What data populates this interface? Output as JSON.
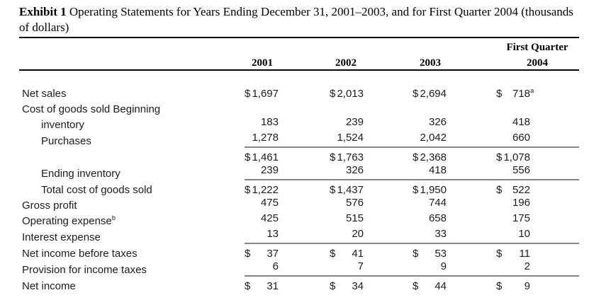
{
  "title": {
    "exhibit_label": "Exhibit 1",
    "line1": " Operating Statements for Years Ending December 31, 2001–2003, and for First Quarter 2004 (thousands",
    "line2": "of dollars)"
  },
  "table": {
    "col_group_header": "First Quarter",
    "year_headers": [
      "2001",
      "2002",
      "2003",
      "2004"
    ],
    "rows": [
      {
        "label": "Net sales",
        "indent": 0,
        "rule": false,
        "cells": [
          {
            "cur": "$",
            "val": "1,697"
          },
          {
            "cur": "$",
            "val": "2,013"
          },
          {
            "cur": "$",
            "val": "2,694"
          },
          {
            "cur": "$",
            "val": "718",
            "sup": "a"
          }
        ]
      },
      {
        "label": "Cost of goods sold Beginning",
        "indent": 0,
        "rule": false,
        "cells": [
          null,
          null,
          null,
          null
        ]
      },
      {
        "label": "inventory",
        "indent": 1,
        "rule": false,
        "cells": [
          {
            "val": "183"
          },
          {
            "val": "239"
          },
          {
            "val": "326"
          },
          {
            "val": "418"
          }
        ]
      },
      {
        "label": "Purchases",
        "indent": 1,
        "rule": true,
        "cells": [
          {
            "val": "1,278"
          },
          {
            "val": "1,524"
          },
          {
            "val": "2,042"
          },
          {
            "val": "660"
          }
        ]
      },
      {
        "label": "",
        "indent": 0,
        "rule": false,
        "cells": [
          {
            "cur": "$",
            "val": "1,461"
          },
          {
            "cur": "$",
            "val": "1,763"
          },
          {
            "cur": "$",
            "val": "2,368"
          },
          {
            "cur": "$",
            "val": "1,078"
          }
        ]
      },
      {
        "label": "Ending inventory",
        "indent": 1,
        "rule": true,
        "cells": [
          {
            "val": "239"
          },
          {
            "val": "326"
          },
          {
            "val": "418"
          },
          {
            "val": "556"
          }
        ]
      },
      {
        "label": "Total cost of goods sold",
        "indent": 1,
        "rule": false,
        "cells": [
          {
            "cur": "$",
            "val": "1,222"
          },
          {
            "cur": "$",
            "val": "1,437"
          },
          {
            "cur": "$",
            "val": "1,950"
          },
          {
            "cur": "$",
            "val": "522"
          }
        ]
      },
      {
        "label": "Gross profit",
        "indent": 0,
        "rule": false,
        "cells": [
          {
            "val": "475"
          },
          {
            "val": "576"
          },
          {
            "val": "744"
          },
          {
            "val": "196"
          }
        ]
      },
      {
        "label": "Operating expense",
        "label_sup": "b",
        "indent": 0,
        "rule": false,
        "cells": [
          {
            "val": "425"
          },
          {
            "val": "515"
          },
          {
            "val": "658"
          },
          {
            "val": "175"
          }
        ]
      },
      {
        "label": "Interest expense",
        "indent": 0,
        "rule": true,
        "cells": [
          {
            "val": "13"
          },
          {
            "val": "20"
          },
          {
            "val": "33"
          },
          {
            "val": "10"
          }
        ]
      },
      {
        "label": "Net income before taxes",
        "indent": 0,
        "rule": false,
        "cells": [
          {
            "cur": "$",
            "val": "37"
          },
          {
            "cur": "$",
            "val": "41"
          },
          {
            "cur": "$",
            "val": "53"
          },
          {
            "cur": "$",
            "val": "11"
          }
        ]
      },
      {
        "label": "Provision for income taxes",
        "indent": 0,
        "rule": true,
        "cells": [
          {
            "val": "6"
          },
          {
            "val": "7"
          },
          {
            "val": "9"
          },
          {
            "val": "2"
          }
        ]
      },
      {
        "label": "Net income",
        "indent": 0,
        "rule": false,
        "cells": [
          {
            "cur": "$",
            "val": "31"
          },
          {
            "cur": "$",
            "val": "34"
          },
          {
            "cur": "$",
            "val": "44"
          },
          {
            "cur": "$",
            "val": "9"
          }
        ]
      }
    ]
  }
}
